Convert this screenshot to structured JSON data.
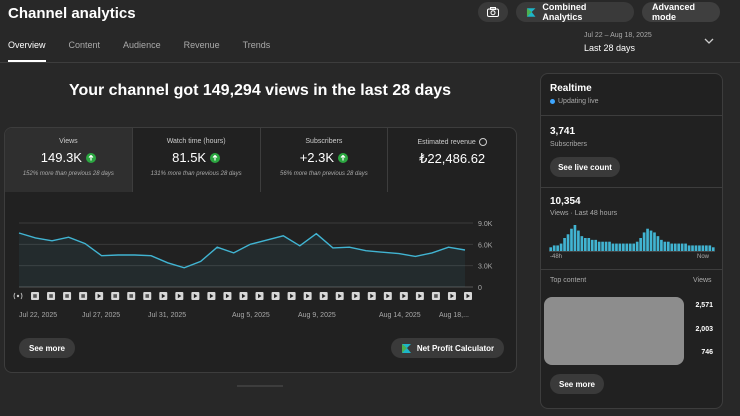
{
  "header": {
    "title": "Channel analytics",
    "combined_label": "Combined Analytics",
    "advanced_label": "Advanced mode"
  },
  "tabs": [
    {
      "label": "Overview",
      "active": true
    },
    {
      "label": "Content"
    },
    {
      "label": "Audience"
    },
    {
      "label": "Revenue"
    },
    {
      "label": "Trends"
    }
  ],
  "date_range": {
    "dates": "Jul 22 – Aug 18, 2025",
    "label": "Last 28 days"
  },
  "headline": "Your channel got 149,294 views in the last 28 days",
  "metrics": [
    {
      "label": "Views",
      "value": "149.3K",
      "sub": "152% more than previous 28 days"
    },
    {
      "label": "Watch time (hours)",
      "value": "81.5K",
      "sub": "131% more than previous 28 days"
    },
    {
      "label": "Subscribers",
      "value": "+2.3K",
      "sub": "56% more than previous 28 days"
    },
    {
      "label": "Estimated revenue",
      "value": "₺22,486.62",
      "sub": ""
    }
  ],
  "chart_data": {
    "type": "line",
    "x": [
      "Jul 22",
      "Jul 23",
      "Jul 24",
      "Jul 25",
      "Jul 26",
      "Jul 27",
      "Jul 28",
      "Jul 29",
      "Jul 30",
      "Jul 31",
      "Aug 1",
      "Aug 2",
      "Aug 3",
      "Aug 4",
      "Aug 5",
      "Aug 6",
      "Aug 7",
      "Aug 8",
      "Aug 9",
      "Aug 10",
      "Aug 11",
      "Aug 12",
      "Aug 13",
      "Aug 14",
      "Aug 15",
      "Aug 16",
      "Aug 17",
      "Aug 18"
    ],
    "series": [
      {
        "values": [
          7600,
          6900,
          6500,
          7000,
          6100,
          4400,
          4500,
          4500,
          4400,
          3400,
          2700,
          3600,
          5600,
          4800,
          6000,
          6600,
          7200,
          5800,
          7500,
          5500,
          5600,
          5100,
          4900,
          4700,
          4300,
          4800,
          5600,
          5200
        ]
      }
    ],
    "ylim": [
      0,
      9000
    ],
    "y_ticks": [
      "9.0K",
      "6.0K",
      "3.0K",
      "0"
    ],
    "x_ticks": [
      "Jul 22, 2025",
      "Jul 27, 2025",
      "Jul 31, 2025",
      "Aug 5, 2025",
      "Aug 9, 2025",
      "Aug 14, 2025",
      "Aug 18,..."
    ],
    "color": "#41b4d2",
    "grid": true
  },
  "buttons": {
    "see_more": "See more",
    "net_profit": "Net Profit Calculator"
  },
  "realtime": {
    "title": "Realtime",
    "status": "Updating live",
    "subs_value": "3,741",
    "subs_label": "Subscribers",
    "see_live": "See live count",
    "views_value": "10,354",
    "views_label": "Views · Last 48 hours",
    "axis_left": "-48h",
    "axis_right": "Now",
    "bars": [
      2,
      3,
      3,
      4,
      7,
      9,
      12,
      14,
      11,
      8,
      7,
      7,
      6,
      6,
      5,
      5,
      5,
      5,
      4,
      4,
      4,
      4,
      4,
      4,
      4,
      5,
      7,
      10,
      12,
      11,
      10,
      8,
      6,
      5,
      5,
      4,
      4,
      4,
      4,
      4,
      3,
      3,
      3,
      3,
      3,
      3,
      3,
      2
    ],
    "top_content_label": "Top content",
    "views_col_label": "Views",
    "rows": [
      "2,571",
      "2,003",
      "746"
    ],
    "see_more": "See more"
  }
}
